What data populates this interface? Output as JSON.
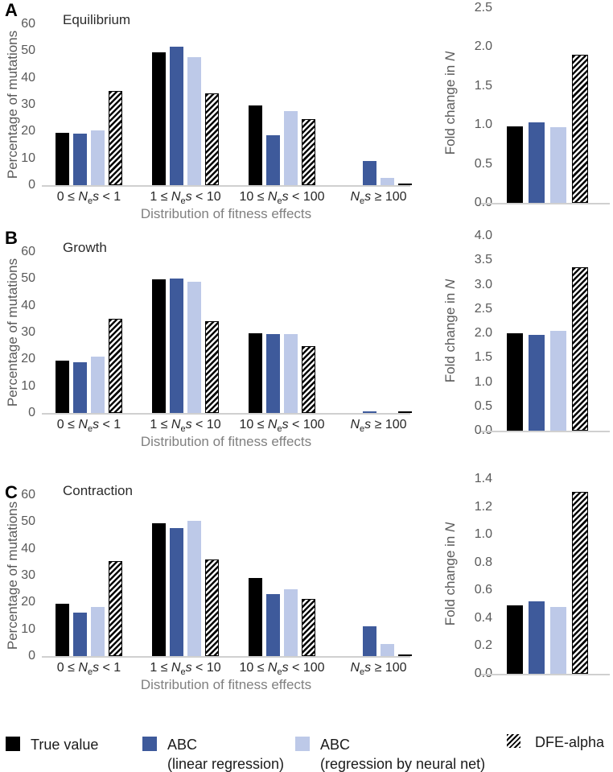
{
  "ui": {
    "panel_letters": [
      "A",
      "B",
      "C"
    ],
    "nes": {
      "n": "N",
      "e": "e",
      "s": "s"
    },
    "category_parts": [
      {
        "pre": "0 ≤ ",
        "post": " < 1"
      },
      {
        "pre": "1 ≤ ",
        "post": " < 10"
      },
      {
        "pre": "10 ≤ ",
        "post": " < 100"
      },
      {
        "pre": "",
        "post": " ≥ 100"
      }
    ],
    "fold_ylabel_pre": "Fold change in ",
    "fold_ylabel_italic": "N"
  },
  "colors": {
    "bar_black": "#000000",
    "bar_dark_blue": "#3e5a9b",
    "bar_light_blue": "#bdc9e8",
    "axis_tick_text": "#595959",
    "category_text": "#262626",
    "axis_line": "#d0d0d0",
    "muted_axis_title": "#808080"
  },
  "legend": {
    "position": "bottom",
    "items": [
      {
        "id": "true-value",
        "label": "True value",
        "label2": "",
        "color": "#000000",
        "pattern": "solid"
      },
      {
        "id": "abc-linear-regression",
        "label": "ABC",
        "label2": "(linear regression)",
        "color": "#3e5a9b",
        "pattern": "solid"
      },
      {
        "id": "abc-neural-net",
        "label": "ABC",
        "label2": "(regression by neural net)",
        "color": "#bdc9e8",
        "pattern": "solid"
      },
      {
        "id": "dfe-alpha",
        "label": "DFE-alpha",
        "label2": "",
        "color": "#000000",
        "pattern": "hatch"
      }
    ]
  },
  "chart_data": [
    {
      "type": "bar",
      "panel": "A",
      "title": "Equilibrium",
      "xlabel": "Distribution of fitness effects",
      "ylabel": "Percentage of mutations",
      "ylim": [
        0,
        60
      ],
      "ytick_labels": [
        "0",
        "10",
        "20",
        "30",
        "40",
        "50",
        "60"
      ],
      "grid": false,
      "legend_position": "shared-bottom",
      "categories": [
        "0 ≤ Nₑs < 1",
        "1 ≤ Nₑs < 10",
        "10 ≤ Nₑs < 100",
        "Nₑs ≥ 100"
      ],
      "series": [
        {
          "name": "True value",
          "values": [
            19.5,
            49.4,
            29.7,
            0
          ]
        },
        {
          "name": "ABC (linear regression)",
          "values": [
            19.2,
            51.7,
            18.5,
            8.9
          ]
        },
        {
          "name": "ABC (regression by neural net)",
          "values": [
            20.5,
            47.7,
            27.6,
            2.8
          ]
        },
        {
          "name": "DFE-alpha",
          "values": [
            35.0,
            34.3,
            24.6,
            0.5
          ]
        }
      ]
    },
    {
      "type": "bar",
      "panel": "A",
      "title": "",
      "xlabel": "",
      "ylabel": "Fold change in N",
      "ylim": [
        0,
        2.5
      ],
      "ytick_labels": [
        "0.0",
        "0.5",
        "1.0",
        "1.5",
        "2.0",
        "2.5"
      ],
      "grid": false,
      "legend_position": "shared-bottom",
      "categories": [
        ""
      ],
      "series": [
        {
          "name": "True value",
          "values": [
            0.98
          ]
        },
        {
          "name": "ABC (linear regression)",
          "values": [
            1.03
          ]
        },
        {
          "name": "ABC (regression by neural net)",
          "values": [
            0.97
          ]
        },
        {
          "name": "DFE-alpha",
          "values": [
            1.9
          ]
        }
      ]
    },
    {
      "type": "bar",
      "panel": "B",
      "title": "Growth",
      "xlabel": "Distribution of fitness effects",
      "ylabel": "Percentage of mutations",
      "ylim": [
        0,
        60
      ],
      "ytick_labels": [
        "0",
        "10",
        "20",
        "30",
        "40",
        "50",
        "60"
      ],
      "grid": false,
      "legend_position": "shared-bottom",
      "categories": [
        "0 ≤ Nₑs < 1",
        "1 ≤ Nₑs < 10",
        "10 ≤ Nₑs < 100",
        "Nₑs ≥ 100"
      ],
      "series": [
        {
          "name": "True value",
          "values": [
            19.5,
            49.7,
            29.6,
            0
          ]
        },
        {
          "name": "ABC (linear regression)",
          "values": [
            19.0,
            50.2,
            29.3,
            0.5
          ]
        },
        {
          "name": "ABC (regression by neural net)",
          "values": [
            21.0,
            49.0,
            29.3,
            0
          ]
        },
        {
          "name": "DFE-alpha",
          "values": [
            35.0,
            34.2,
            25.0,
            0.4
          ]
        }
      ]
    },
    {
      "type": "bar",
      "panel": "B",
      "title": "",
      "xlabel": "",
      "ylabel": "Fold change in N",
      "ylim": [
        0,
        4.0
      ],
      "ytick_labels": [
        "0.0",
        "0.5",
        "1.0",
        "1.5",
        "2.0",
        "2.5",
        "3.0",
        "3.5",
        "4.0"
      ],
      "grid": false,
      "legend_position": "shared-bottom",
      "categories": [
        ""
      ],
      "series": [
        {
          "name": "True value",
          "values": [
            2.0
          ]
        },
        {
          "name": "ABC (linear regression)",
          "values": [
            1.97
          ]
        },
        {
          "name": "ABC (regression by neural net)",
          "values": [
            2.05
          ]
        },
        {
          "name": "DFE-alpha",
          "values": [
            3.35
          ]
        }
      ]
    },
    {
      "type": "bar",
      "panel": "C",
      "title": "Contraction",
      "xlabel": "Distribution of fitness effects",
      "ylabel": "Percentage of mutations",
      "ylim": [
        0,
        60
      ],
      "ytick_labels": [
        "0",
        "10",
        "20",
        "30",
        "40",
        "50",
        "60"
      ],
      "grid": false,
      "legend_position": "shared-bottom",
      "categories": [
        "0 ≤ Nₑs < 1",
        "1 ≤ Nₑs < 10",
        "10 ≤ Nₑs < 100",
        "Nₑs ≥ 100"
      ],
      "series": [
        {
          "name": "True value",
          "values": [
            19.5,
            49.5,
            29.2,
            0
          ]
        },
        {
          "name": "ABC (linear regression)",
          "values": [
            16.3,
            47.6,
            23.2,
            11.2
          ]
        },
        {
          "name": "ABC (regression by neural net)",
          "values": [
            18.4,
            50.4,
            24.8,
            4.6
          ]
        },
        {
          "name": "DFE-alpha",
          "values": [
            35.5,
            36.0,
            21.2,
            0.5
          ]
        }
      ]
    },
    {
      "type": "bar",
      "panel": "C",
      "title": "",
      "xlabel": "",
      "ylabel": "Fold change in N",
      "ylim": [
        0,
        1.4
      ],
      "ytick_labels": [
        "0.0",
        "0.2",
        "0.4",
        "0.6",
        "0.8",
        "1.0",
        "1.2",
        "1.4"
      ],
      "grid": false,
      "legend_position": "shared-bottom",
      "categories": [
        ""
      ],
      "series": [
        {
          "name": "True value",
          "values": [
            0.49
          ]
        },
        {
          "name": "ABC (linear regression)",
          "values": [
            0.52
          ]
        },
        {
          "name": "ABC (regression by neural net)",
          "values": [
            0.48
          ]
        },
        {
          "name": "DFE-alpha",
          "values": [
            1.31
          ]
        }
      ]
    }
  ]
}
